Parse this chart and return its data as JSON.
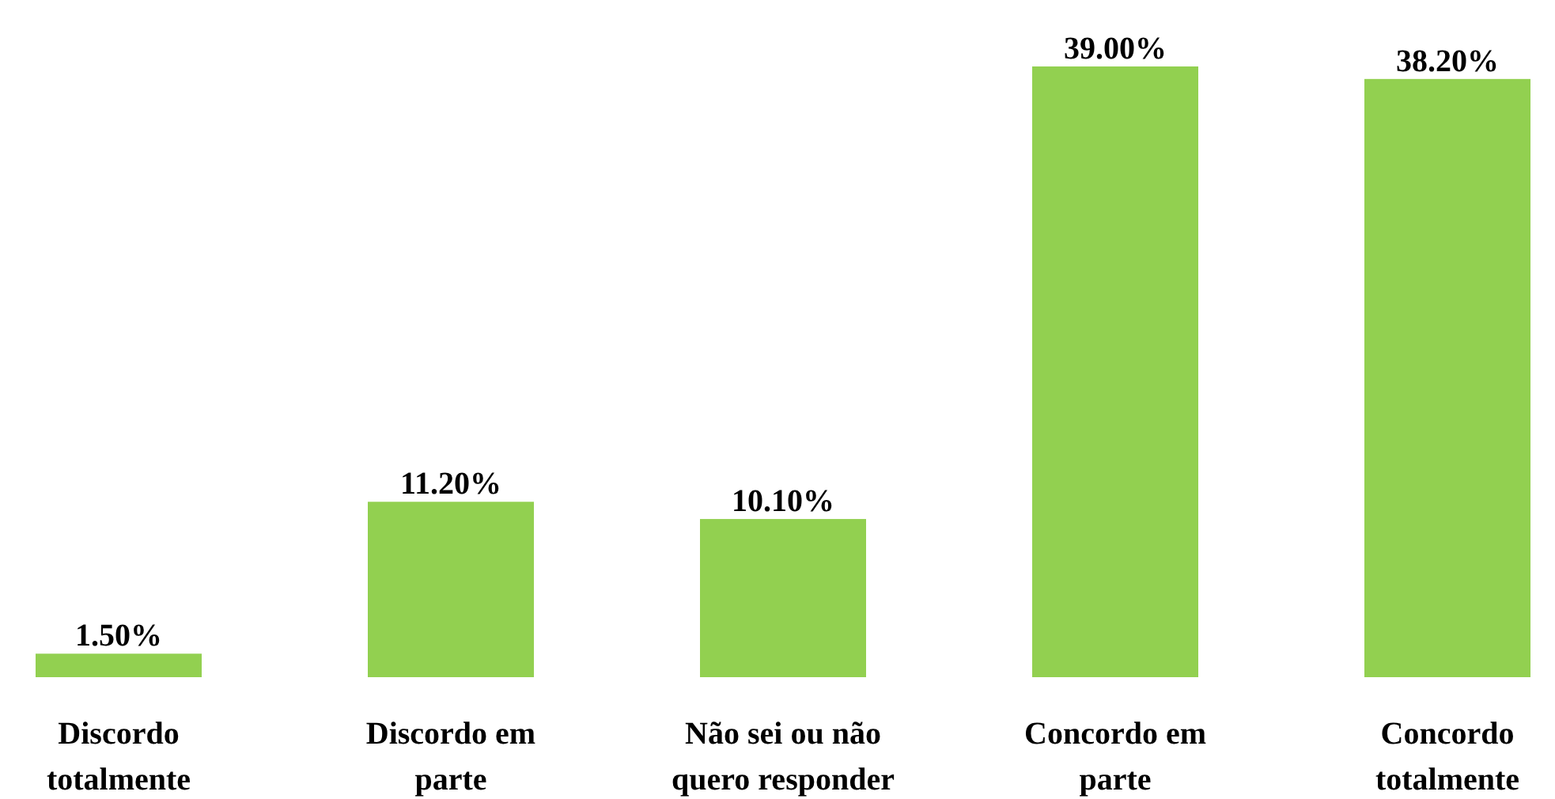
{
  "chart_data": {
    "type": "bar",
    "categories": [
      "Discordo totalmente",
      "Discordo em parte",
      "Não sei ou não quero responder",
      "Concordo em parte",
      "Concordo totalmente"
    ],
    "values": [
      1.5,
      11.2,
      10.1,
      39.0,
      38.2
    ],
    "value_labels": [
      "1.50%",
      "11.20%",
      "10.10%",
      "39.00%",
      "38.20%"
    ],
    "color": "#92d050"
  }
}
